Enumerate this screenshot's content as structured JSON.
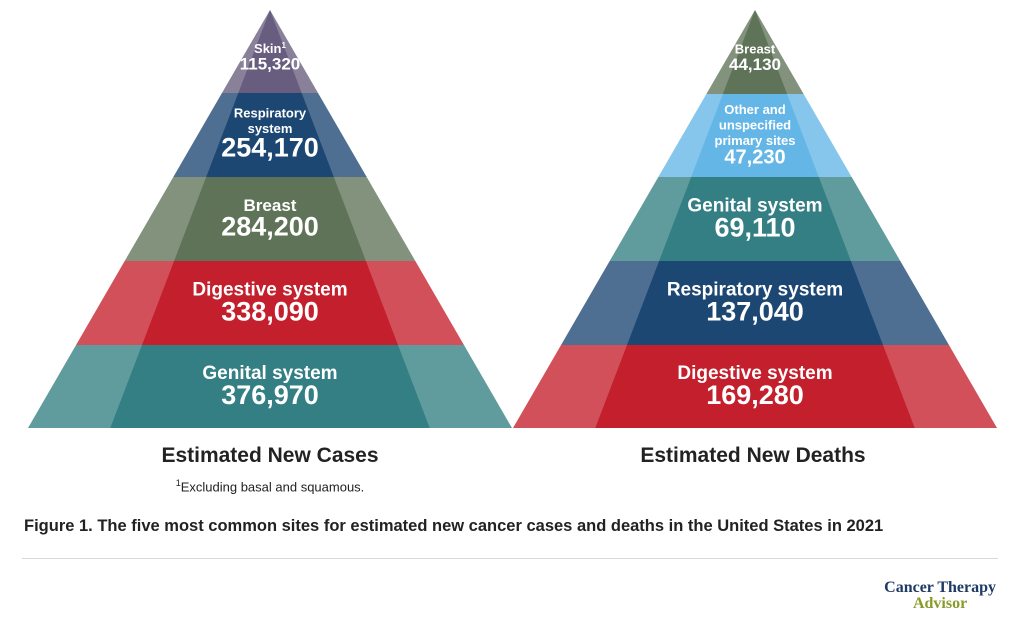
{
  "figure": {
    "caption": "Figure 1. The five most common sites for estimated new cancer cases and deaths in the United States in 2021",
    "footnote_marker": "1",
    "footnote_text": "Excluding basal and squamous.",
    "logo_line1": "Cancer Therapy",
    "logo_line2": "Advisor"
  },
  "pyramids": [
    {
      "title": "Estimated New Cases",
      "segments": [
        {
          "label_lines": [
            "Skin"
          ],
          "superscript": "1",
          "value": "115,320",
          "color": "#685d7e"
        },
        {
          "label_lines": [
            "Respiratory",
            "system"
          ],
          "value": "254,170",
          "color": "#1d4773"
        },
        {
          "label_lines": [
            "Breast"
          ],
          "value": "284,200",
          "color": "#5f7358"
        },
        {
          "label_lines": [
            "Digestive system"
          ],
          "value": "338,090",
          "color": "#c41f2c"
        },
        {
          "label_lines": [
            "Genital system"
          ],
          "value": "376,970",
          "color": "#337f83"
        }
      ]
    },
    {
      "title": "Estimated New Deaths",
      "segments": [
        {
          "label_lines": [
            "Breast"
          ],
          "value": "44,130",
          "color": "#5f7358"
        },
        {
          "label_lines": [
            "Other and",
            "unspecified",
            "primary sites"
          ],
          "value": "47,230",
          "color": "#64b6e6"
        },
        {
          "label_lines": [
            "Genital system"
          ],
          "value": "69,110",
          "color": "#337f83"
        },
        {
          "label_lines": [
            "Respiratory system"
          ],
          "value": "137,040",
          "color": "#1d4773"
        },
        {
          "label_lines": [
            "Digestive system"
          ],
          "value": "169,280",
          "color": "#c41f2c"
        }
      ]
    }
  ]
}
